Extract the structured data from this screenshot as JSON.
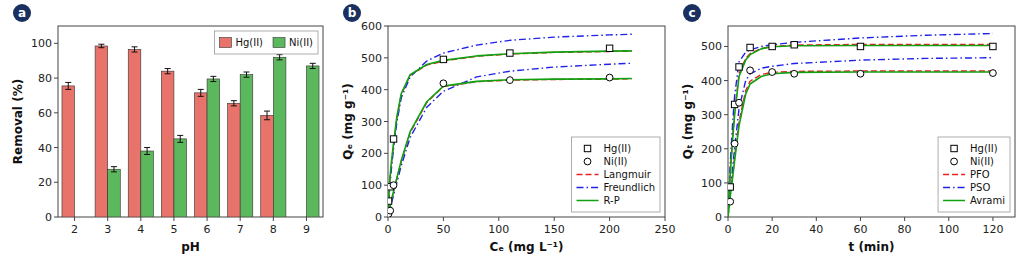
{
  "chart_data": [
    {
      "type": "bar",
      "categories": [
        "2",
        "3",
        "4",
        "5",
        "6",
        "7",
        "8",
        "9"
      ],
      "series": [
        {
          "name": "Hg(II)",
          "color": "#E8736A",
          "values": [
            75.5,
            98.5,
            96.5,
            84.0,
            71.5,
            65.5,
            58.5,
            null
          ],
          "errors": [
            2.0,
            1.0,
            1.5,
            1.5,
            2.0,
            1.5,
            2.5,
            null
          ]
        },
        {
          "name": "Ni(II)",
          "color": "#5CB85C",
          "values": [
            null,
            27.5,
            38.0,
            45.0,
            79.5,
            82.0,
            92.0,
            87.0
          ],
          "errors": [
            null,
            1.5,
            2.0,
            2.0,
            1.5,
            1.5,
            1.5,
            1.5
          ]
        }
      ],
      "xlabel": "pH",
      "ylabel": "Removal (%)",
      "ylim": [
        0,
        110
      ],
      "yticks": [
        0,
        20,
        40,
        60,
        80,
        100
      ],
      "legend": "upper right",
      "grid": false,
      "annotations": [
        {
          "text": "a",
          "color": "#1a3060"
        }
      ]
    },
    {
      "type": "line",
      "series": [
        {
          "name": "Hg(II)",
          "type": "scatter",
          "marker": "square",
          "color": "#000000",
          "x": [
            0.5,
            2.0,
            5.0,
            50.0,
            110.0,
            200.0
          ],
          "values": [
            50.0,
            95.0,
            245.0,
            495.0,
            515.0,
            530.0
          ],
          "errors": [
            3.0,
            3.0,
            5.0,
            5.0,
            5.0,
            5.0
          ]
        },
        {
          "name": "Ni(II)",
          "type": "scatter",
          "marker": "circle",
          "color": "#000000",
          "x": [
            0.5,
            2.0,
            5.0,
            50.0,
            110.0,
            200.0
          ],
          "values": [
            10.0,
            20.0,
            100.0,
            420.0,
            430.0,
            438.0
          ],
          "errors": [
            2.0,
            2.0,
            4.0,
            4.0,
            4.0,
            4.0
          ]
        },
        {
          "name": "Langmuir",
          "type": "line",
          "line_style": "dashed",
          "color": "#E82020",
          "x": [
            0.0,
            0.3,
            0.6,
            1.0,
            1.5,
            2.0,
            3.0,
            5.0,
            8.0,
            12.0,
            20.0,
            35.0,
            50.0,
            80.0,
            110.0,
            150.0,
            200.0,
            220.0
          ],
          "values": [
            0.0,
            32.0,
            58.0,
            82.0,
            108.0,
            128.0,
            165.0,
            225.0,
            310.0,
            385.0,
            445.0,
            477.0,
            490.0,
            505.0,
            512.0,
            517.0,
            520.0,
            521.0
          ]
        },
        {
          "name": "Langmuir",
          "type": "line",
          "line_style": "dashed",
          "color": "#E82020",
          "x": [
            0.0,
            0.3,
            0.6,
            1.0,
            1.5,
            2.0,
            3.0,
            5.0,
            8.0,
            12.0,
            20.0,
            35.0,
            50.0,
            80.0,
            110.0,
            150.0,
            200.0,
            220.0
          ],
          "values": [
            0.0,
            8.0,
            14.0,
            20.0,
            28.0,
            35.0,
            50.0,
            78.0,
            120.0,
            175.0,
            265.0,
            360.0,
            410.0,
            425.0,
            430.0,
            432.0,
            433.0,
            434.0
          ]
        },
        {
          "name": "Freundlich",
          "type": "line",
          "line_style": "dashdot",
          "color": "#2020E8",
          "x": [
            0.0,
            0.3,
            0.6,
            1.0,
            1.5,
            2.0,
            3.0,
            5.0,
            8.0,
            12.0,
            20.0,
            35.0,
            50.0,
            80.0,
            110.0,
            150.0,
            200.0,
            220.0
          ],
          "values": [
            0.0,
            22.0,
            42.0,
            65.0,
            90.0,
            110.0,
            148.0,
            215.0,
            298.0,
            375.0,
            440.0,
            490.0,
            515.0,
            540.0,
            555.0,
            565.0,
            572.0,
            574.0
          ]
        },
        {
          "name": "Freundlich",
          "type": "line",
          "line_style": "dashdot",
          "color": "#2020E8",
          "x": [
            0.0,
            0.3,
            0.6,
            1.0,
            1.5,
            2.0,
            3.0,
            5.0,
            8.0,
            12.0,
            20.0,
            35.0,
            50.0,
            80.0,
            110.0,
            150.0,
            200.0,
            220.0
          ],
          "values": [
            0.0,
            5.0,
            10.0,
            16.0,
            22.0,
            28.0,
            42.0,
            68.0,
            108.0,
            162.0,
            250.0,
            345.0,
            395.0,
            440.0,
            458.0,
            471.0,
            480.0,
            483.0
          ]
        },
        {
          "name": "R-P",
          "type": "line",
          "line_style": "solid",
          "color": "#10A010",
          "x": [
            0.0,
            0.3,
            0.6,
            1.0,
            1.5,
            2.0,
            3.0,
            5.0,
            8.0,
            12.0,
            20.0,
            35.0,
            50.0,
            80.0,
            110.0,
            150.0,
            200.0,
            220.0
          ],
          "values": [
            0.0,
            33.0,
            60.0,
            85.0,
            112.0,
            132.0,
            170.0,
            232.0,
            315.0,
            388.0,
            447.0,
            479.0,
            492.0,
            506.0,
            513.0,
            518.0,
            521.0,
            522.0
          ]
        },
        {
          "name": "R-P",
          "type": "line",
          "line_style": "solid",
          "color": "#10A010",
          "x": [
            0.0,
            0.3,
            0.6,
            1.0,
            1.5,
            2.0,
            3.0,
            5.0,
            8.0,
            12.0,
            20.0,
            35.0,
            50.0,
            80.0,
            110.0,
            150.0,
            200.0,
            220.0
          ],
          "values": [
            0.0,
            8.0,
            15.0,
            21.0,
            29.0,
            37.0,
            52.0,
            80.0,
            123.0,
            178.0,
            268.0,
            362.0,
            411.0,
            426.0,
            431.0,
            433.0,
            434.0,
            435.0
          ]
        }
      ],
      "xlabel": "Cₑ (mg L⁻¹)",
      "ylabel": "Qₑ (mg g⁻¹)",
      "xlim": [
        0,
        250
      ],
      "xticks": [
        0,
        50,
        100,
        150,
        200,
        250
      ],
      "ylim": [
        0,
        600
      ],
      "yticks": [
        0,
        100,
        200,
        300,
        400,
        500,
        600
      ],
      "legend": "lower right",
      "grid": false,
      "annotations": [
        {
          "text": "b",
          "color": "#1a3060"
        }
      ]
    },
    {
      "type": "line",
      "series": [
        {
          "name": "Hg(II)",
          "type": "scatter",
          "marker": "square",
          "color": "#000000",
          "x": [
            1,
            3,
            5,
            10,
            20,
            30,
            60,
            120
          ],
          "values": [
            88.0,
            330.0,
            440.0,
            497.0,
            500.0,
            505.0,
            500.0,
            500.0
          ],
          "errors": [
            3.0,
            5.0,
            5.0,
            5.0,
            5.0,
            5.0,
            5.0,
            5.0
          ]
        },
        {
          "name": "Ni(II)",
          "type": "scatter",
          "marker": "circle",
          "color": "#000000",
          "x": [
            1,
            3,
            5,
            10,
            20,
            30,
            60,
            120
          ],
          "values": [
            45.0,
            215.0,
            335.0,
            430.0,
            425.0,
            420.0,
            420.0,
            422.0
          ],
          "errors": [
            3.0,
            5.0,
            5.0,
            5.0,
            5.0,
            5.0,
            5.0,
            5.0
          ]
        },
        {
          "name": "PFO",
          "type": "line",
          "line_style": "dashed",
          "color": "#E82020",
          "x": [
            0.0,
            0.5,
            1.0,
            2.0,
            3.0,
            5.0,
            8.0,
            10.0,
            15.0,
            20.0,
            30.0,
            60.0,
            90.0,
            120.0
          ],
          "values": [
            0.0,
            72.0,
            132.0,
            228.0,
            308.0,
            420.0,
            465.0,
            479.0,
            494.0,
            500.0,
            504.0,
            506.0,
            506.0,
            506.0
          ]
        },
        {
          "name": "PFO",
          "type": "line",
          "line_style": "dashed",
          "color": "#E82020",
          "x": [
            0.0,
            0.5,
            1.0,
            2.0,
            3.0,
            5.0,
            8.0,
            10.0,
            15.0,
            20.0,
            30.0,
            60.0,
            90.0,
            120.0
          ],
          "values": [
            0.0,
            35.0,
            65.0,
            118.0,
            175.0,
            280.0,
            370.0,
            398.0,
            418.0,
            424.0,
            427.0,
            428.0,
            428.0,
            428.0
          ]
        },
        {
          "name": "PSO",
          "type": "line",
          "line_style": "dashdot",
          "color": "#2020E8",
          "x": [
            0.0,
            0.5,
            1.0,
            2.0,
            3.0,
            5.0,
            8.0,
            10.0,
            15.0,
            20.0,
            30.0,
            60.0,
            90.0,
            120.0
          ],
          "values": [
            0.0,
            85.0,
            155.0,
            265.0,
            355.0,
            455.0,
            483.0,
            490.0,
            500.0,
            505.0,
            512.0,
            525.0,
            533.0,
            538.0
          ]
        },
        {
          "name": "PSO",
          "type": "line",
          "line_style": "dashdot",
          "color": "#2020E8",
          "x": [
            0.0,
            0.5,
            1.0,
            2.0,
            3.0,
            5.0,
            8.0,
            10.0,
            15.0,
            20.0,
            30.0,
            60.0,
            90.0,
            120.0
          ],
          "values": [
            0.0,
            40.0,
            75.0,
            138.0,
            202.0,
            318.0,
            400.0,
            420.0,
            436.0,
            442.0,
            450.0,
            460.0,
            465.0,
            467.0
          ]
        },
        {
          "name": "Avrami",
          "type": "line",
          "line_style": "solid",
          "color": "#10A010",
          "x": [
            0.0,
            0.5,
            1.0,
            2.0,
            3.0,
            5.0,
            8.0,
            10.0,
            15.0,
            20.0,
            30.0,
            60.0,
            90.0,
            120.0
          ],
          "values": [
            0.0,
            68.0,
            125.0,
            218.0,
            300.0,
            412.0,
            460.0,
            476.0,
            493.0,
            499.0,
            502.0,
            503.0,
            503.0,
            503.0
          ]
        },
        {
          "name": "Avrami",
          "type": "line",
          "line_style": "solid",
          "color": "#10A010",
          "x": [
            0.0,
            0.5,
            1.0,
            2.0,
            3.0,
            5.0,
            8.0,
            10.0,
            15.0,
            20.0,
            30.0,
            60.0,
            90.0,
            120.0
          ],
          "values": [
            0.0,
            32.0,
            60.0,
            110.0,
            165.0,
            268.0,
            360.0,
            390.0,
            412.0,
            420.0,
            424.0,
            425.0,
            425.0,
            425.0
          ]
        }
      ],
      "xlabel": "t (min)",
      "ylabel": "Qₜ (mg g⁻¹)",
      "xlim": [
        0,
        130
      ],
      "xticks": [
        0,
        20,
        40,
        60,
        80,
        100,
        120
      ],
      "ylim": [
        0,
        560
      ],
      "yticks": [
        0,
        100,
        200,
        300,
        400,
        500
      ],
      "legend": "lower right",
      "grid": false,
      "annotations": [
        {
          "text": "c",
          "color": "#1a3060"
        }
      ]
    }
  ]
}
